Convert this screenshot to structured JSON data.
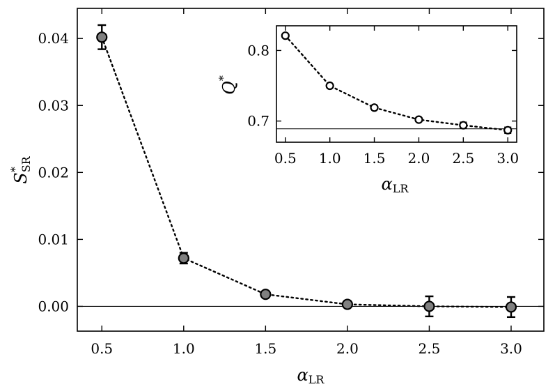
{
  "chart_data": [
    {
      "type": "scatter",
      "title": "",
      "xlabel": "α_LR",
      "ylabel": "S*_SR",
      "xlabel_parts": {
        "main": "α",
        "sub": "LR"
      },
      "ylabel_parts": {
        "main": "S",
        "sup": "*",
        "sub": "SR"
      },
      "xlim": [
        0.35,
        3.2
      ],
      "ylim": [
        -0.0037,
        0.0445
      ],
      "xticks": [
        0.5,
        1.0,
        1.5,
        2.0,
        2.5,
        3.0
      ],
      "xtick_labels": [
        "0.5",
        "1.0",
        "1.5",
        "2.0",
        "2.5",
        "3.0"
      ],
      "yticks": [
        0.0,
        0.01,
        0.02,
        0.03,
        0.04
      ],
      "ytick_labels": [
        "0.00",
        "0.01",
        "0.02",
        "0.03",
        "0.04"
      ],
      "reference_line": 0.0,
      "grid": false,
      "marker": "filled-grey-circle",
      "line_style": "dotted",
      "x": [
        0.5,
        1.0,
        1.5,
        2.0,
        2.5,
        3.0
      ],
      "values": [
        0.0402,
        0.0072,
        0.0018,
        0.0003,
        0.0,
        -0.0001
      ],
      "errors": [
        0.0018,
        0.0008,
        0.0002,
        0.0002,
        0.0015,
        0.0015
      ]
    },
    {
      "type": "scatter",
      "title": "",
      "xlabel": "α_LR",
      "ylabel": "Q*",
      "xlabel_parts": {
        "main": "α",
        "sub": "LR"
      },
      "ylabel_parts": {
        "main": "Q",
        "sup": "*"
      },
      "xlim": [
        0.4,
        3.1
      ],
      "ylim": [
        0.67,
        0.835
      ],
      "xticks": [
        0.5,
        1.0,
        1.5,
        2.0,
        2.5,
        3.0
      ],
      "xtick_labels": [
        "0.5",
        "1.0",
        "1.5",
        "2.0",
        "2.5",
        "3.0"
      ],
      "yticks": [
        0.7,
        0.8
      ],
      "ytick_labels": [
        "0.7",
        "0.8"
      ],
      "reference_line": 0.689,
      "grid": false,
      "marker": "open-circle",
      "line_style": "dotted",
      "placement": "inset-top-right",
      "x": [
        0.5,
        1.0,
        1.5,
        2.0,
        2.5,
        3.0
      ],
      "values": [
        0.821,
        0.75,
        0.719,
        0.702,
        0.694,
        0.687
      ],
      "errors": [
        0.0,
        0.0,
        0.0,
        0.0,
        0.004,
        0.004
      ]
    }
  ],
  "colors": {
    "axis": "#000000",
    "main_marker_fill": "#808080",
    "main_marker_stroke": "#000000",
    "inset_marker_fill": "#ffffff",
    "inset_marker_stroke": "#000000",
    "line": "#000000"
  }
}
